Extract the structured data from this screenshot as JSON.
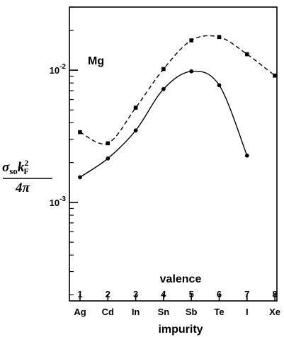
{
  "chart_data": {
    "type": "line",
    "y_scale": "log",
    "ylim": [
      0.00018,
      0.03
    ],
    "y_ticks": [
      {
        "value": 0.01,
        "label": "10",
        "exp": "-2"
      },
      {
        "value": 0.001,
        "label": "10",
        "exp": "-3"
      }
    ],
    "annotation": "Mg",
    "ylabel": {
      "numerator_sigma": "σ",
      "numerator_sub": "so",
      "numerator_k": "k",
      "numerator_sup": "2",
      "numerator_subF": "F",
      "denominator": "4π"
    },
    "top_axis": {
      "title": "valence",
      "ticks": [
        "1",
        "2",
        "3",
        "4",
        "5",
        "6",
        "7",
        "8"
      ]
    },
    "xlabel": "impurity",
    "categories": [
      "Ag",
      "Cd",
      "In",
      "Sn",
      "Sb",
      "Te",
      "I",
      "Xe"
    ],
    "series": [
      {
        "style": "dashed",
        "marker": "square",
        "color": "#000000",
        "values": [
          0.0034,
          0.0028,
          0.0052,
          0.0102,
          0.0168,
          0.0178,
          0.0132,
          0.0091
        ]
      },
      {
        "style": "solid",
        "marker": "circle",
        "color": "#000000",
        "values": [
          0.00155,
          0.00215,
          0.0035,
          0.0072,
          0.0098,
          0.0077,
          0.00226,
          null
        ]
      }
    ]
  }
}
